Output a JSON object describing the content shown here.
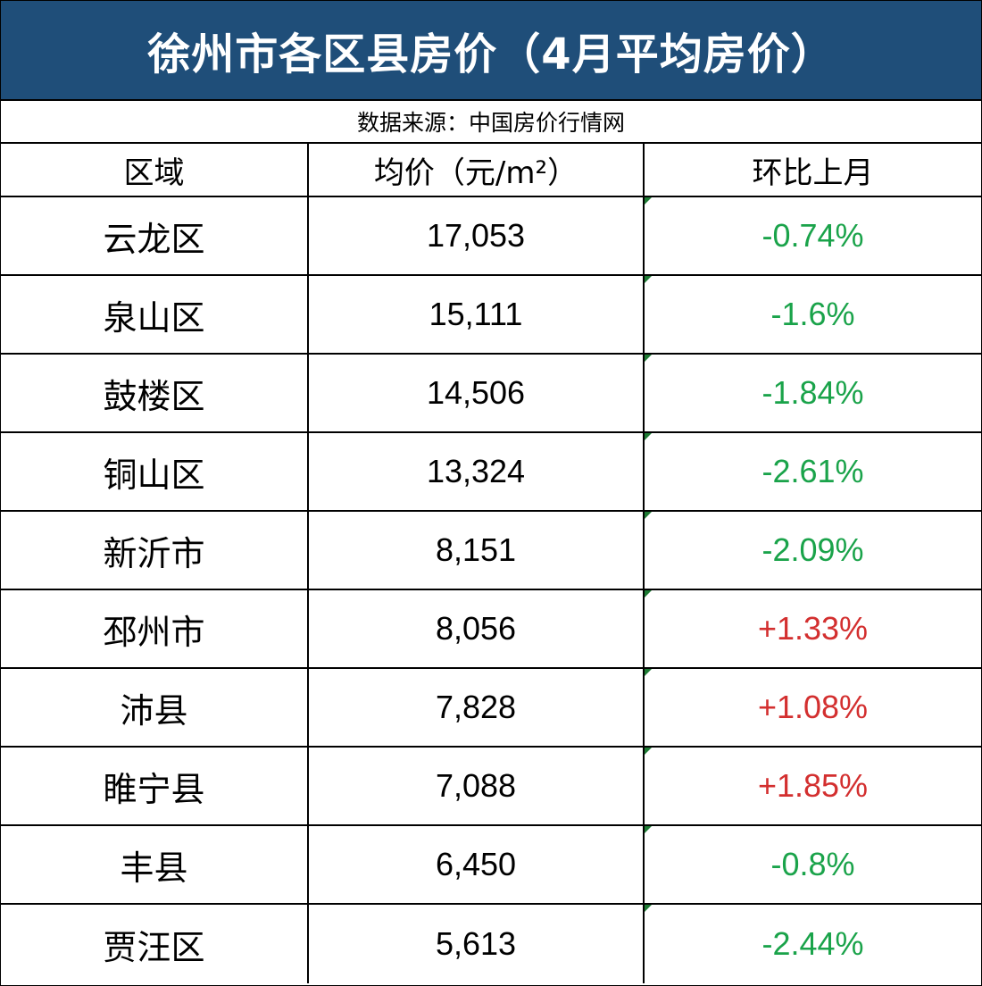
{
  "title": "徐州市各区县房价（4月平均房价）",
  "source": "数据来源：中国房价行情网",
  "colors": {
    "header_bg": "#1F4E79",
    "negative": "#1AA34A",
    "positive": "#D32F2F"
  },
  "headers": [
    "区域",
    "均价（元/m²）",
    "环比上月"
  ],
  "chart_data": {
    "type": "table",
    "title": "徐州市各区县房价（4月平均房价）",
    "columns": [
      "区域",
      "均价（元/m²）",
      "环比上月"
    ],
    "rows": [
      {
        "region": "云龙区",
        "price": "17,053",
        "change": "-0.74%"
      },
      {
        "region": "泉山区",
        "price": "15,111",
        "change": "-1.6%"
      },
      {
        "region": "鼓楼区",
        "price": "14,506",
        "change": "-1.84%"
      },
      {
        "region": "铜山区",
        "price": "13,324",
        "change": "-2.61%"
      },
      {
        "region": "新沂市",
        "price": "8,151",
        "change": "-2.09%"
      },
      {
        "region": "邳州市",
        "price": "8,056",
        "change": "+1.33%"
      },
      {
        "region": "沛县",
        "price": "7,828",
        "change": "+1.08%"
      },
      {
        "region": "睢宁县",
        "price": "7,088",
        "change": "+1.85%"
      },
      {
        "region": "丰县",
        "price": "6,450",
        "change": "-0.8%"
      },
      {
        "region": "贾汪区",
        "price": "5,613",
        "change": "-2.44%"
      }
    ]
  }
}
